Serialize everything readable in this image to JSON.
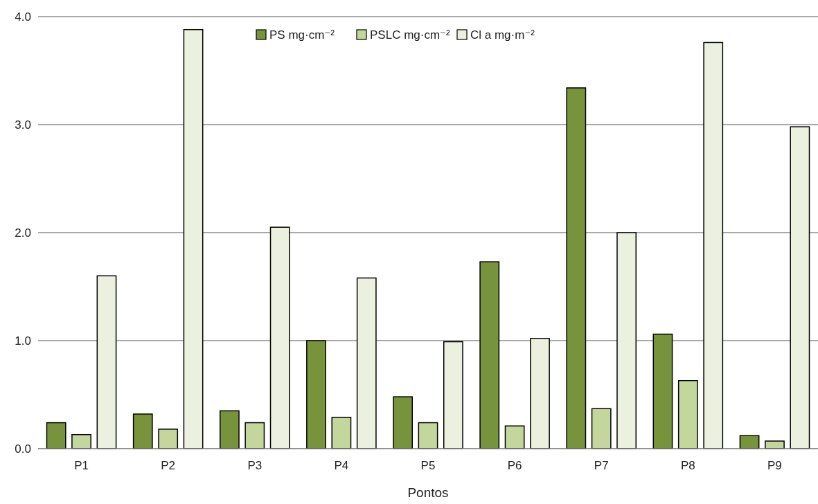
{
  "chart_data": {
    "type": "bar",
    "xlabel": "Pontos",
    "categories": [
      "P1",
      "P2",
      "P3",
      "P4",
      "P5",
      "P6",
      "P7",
      "P8",
      "P9"
    ],
    "series": [
      {
        "name": "PS mg·cm⁻²",
        "color": "#77933c",
        "values": [
          0.24,
          0.32,
          0.35,
          1.0,
          0.48,
          1.73,
          3.34,
          1.06,
          0.12
        ]
      },
      {
        "name": "PSLC mg·cm⁻²",
        "color": "#c3d69b",
        "values": [
          0.13,
          0.18,
          0.24,
          0.29,
          0.24,
          0.21,
          0.37,
          0.63,
          0.07
        ]
      },
      {
        "name": "Cl a mg·m⁻²",
        "color": "#ebf1de",
        "values": [
          1.6,
          3.88,
          2.05,
          1.58,
          0.99,
          1.02,
          2.0,
          3.76,
          2.98
        ]
      }
    ],
    "ylim": [
      0,
      4
    ],
    "yticks": [
      {
        "value": 0,
        "label": "0.0"
      },
      {
        "value": 1,
        "label": "1.0"
      },
      {
        "value": 2,
        "label": "2.0"
      },
      {
        "value": 3,
        "label": "3.0"
      },
      {
        "value": 4,
        "label": "4.0"
      }
    ],
    "grid": "y",
    "legend": "top"
  }
}
